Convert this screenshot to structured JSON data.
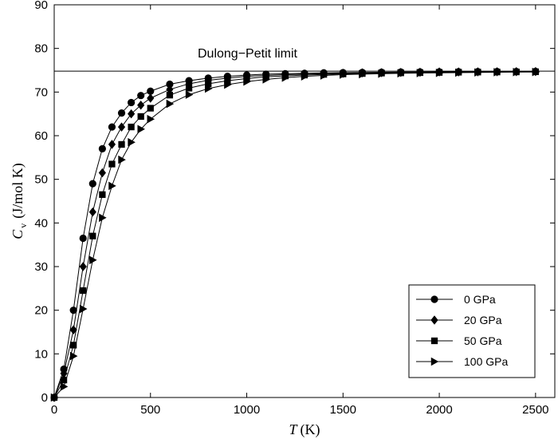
{
  "chart_data": {
    "type": "line",
    "xlabel": {
      "italic": "T",
      "unit": "(K)"
    },
    "ylabel": {
      "italic": "C",
      "sub": "v",
      "unit": "(J/mol K)"
    },
    "xlim": [
      0,
      2600
    ],
    "ylim": [
      0,
      90
    ],
    "xticks": [
      "0",
      "500",
      "1000",
      "1500",
      "2000",
      "2500"
    ],
    "yticks": [
      "0",
      "10",
      "20",
      "30",
      "40",
      "50",
      "60",
      "70",
      "80",
      "90"
    ],
    "grid": false,
    "legend_position": "bottom-right",
    "reference_line": {
      "y": 74.8,
      "label": "Dulong−Petit limit"
    },
    "x": [
      0,
      50,
      100,
      150,
      200,
      250,
      300,
      350,
      400,
      450,
      500,
      600,
      700,
      800,
      900,
      1000,
      1100,
      1200,
      1300,
      1400,
      1500,
      1600,
      1700,
      1800,
      1900,
      2000,
      2100,
      2200,
      2300,
      2400,
      2500
    ],
    "series": [
      {
        "name": "0 GPa",
        "marker": "circle",
        "values": [
          0,
          6.5,
          20,
          36.5,
          49,
          57,
          62,
          65.2,
          67.6,
          69.2,
          70.2,
          71.8,
          72.6,
          73.2,
          73.6,
          73.9,
          74.1,
          74.2,
          74.3,
          74.4,
          74.45,
          74.5,
          74.55,
          74.6,
          74.62,
          74.64,
          74.66,
          74.68,
          74.7,
          74.71,
          74.72
        ]
      },
      {
        "name": "20 GPa",
        "marker": "diamond",
        "values": [
          0,
          5.5,
          15.5,
          30,
          42.5,
          51.5,
          58,
          62,
          65,
          67,
          68.6,
          70.6,
          71.9,
          72.7,
          73.2,
          73.6,
          73.8,
          74.0,
          74.1,
          74.2,
          74.3,
          74.4,
          74.45,
          74.5,
          74.55,
          74.6,
          74.62,
          74.64,
          74.66,
          74.68,
          74.7
        ]
      },
      {
        "name": "50 GPa",
        "marker": "square",
        "values": [
          0,
          4,
          12,
          24.5,
          37,
          46.5,
          53.5,
          58,
          62,
          64.4,
          66.3,
          69.3,
          70.9,
          71.9,
          72.6,
          73.1,
          73.5,
          73.7,
          73.9,
          74.05,
          74.15,
          74.25,
          74.35,
          74.4,
          74.45,
          74.5,
          74.55,
          74.58,
          74.6,
          74.62,
          74.65
        ]
      },
      {
        "name": "100 GPa",
        "marker": "triangle-right",
        "values": [
          0,
          2.5,
          9.5,
          20.3,
          31.5,
          41.2,
          48.5,
          54.5,
          58.5,
          61.5,
          63.8,
          67.3,
          69.4,
          70.8,
          71.7,
          72.4,
          72.9,
          73.3,
          73.6,
          73.8,
          74.0,
          74.1,
          74.2,
          74.3,
          74.35,
          74.4,
          74.45,
          74.5,
          74.55,
          74.58,
          74.6
        ]
      }
    ]
  }
}
